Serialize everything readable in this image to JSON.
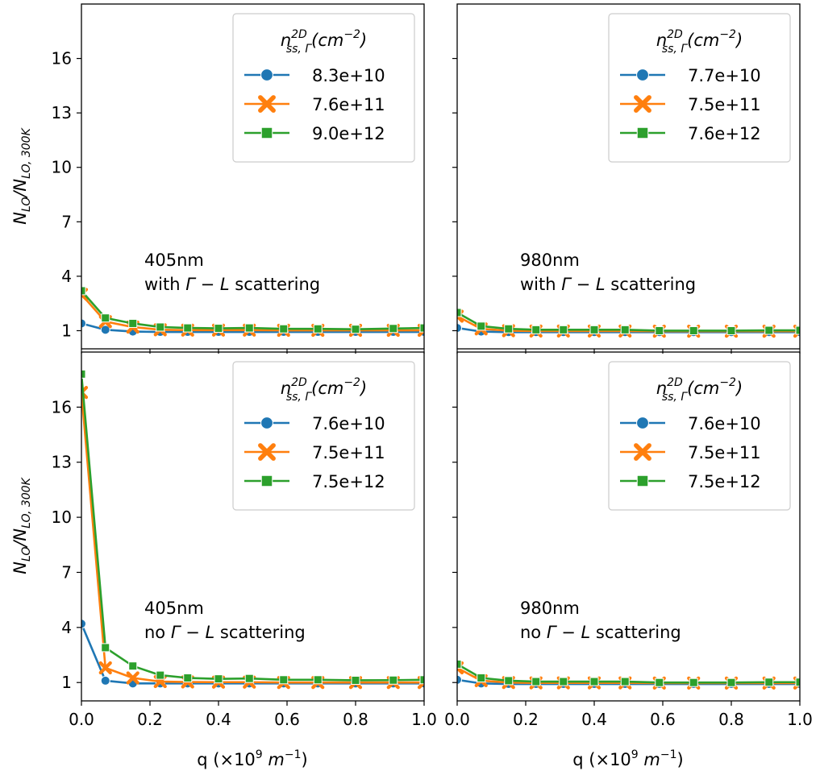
{
  "figure": {
    "ylabel_main": "N",
    "ylabel_sub1": "LO",
    "ylabel_mid": "/N",
    "ylabel_sub2": "LO, 300K",
    "xlabel_main": "q (×10",
    "xlabel_exp": "9",
    "xlabel_unit": "m",
    "xlabel_unit_exp": "−1",
    "xlabel_close": ")",
    "legend_title_main": "n",
    "legend_title_sup": "2D",
    "legend_title_sub": "ss, Γ",
    "legend_title_unit": "(cm",
    "legend_title_unit_exp": "−2",
    "legend_title_close": ")",
    "anno_scatter_prefix": "Γ − L",
    "anno_scatter_suffix": " scattering"
  },
  "chart_data": [
    {
      "type": "line",
      "annotation_line1": "405nm",
      "annotation_line2_prefix": "with ",
      "xlim": [
        0.0,
        1.0
      ],
      "ylim": [
        0,
        19
      ],
      "xticks": [
        "0.0",
        "0.2",
        "0.4",
        "0.6",
        "0.8",
        "1.0"
      ],
      "yticks": [
        1,
        4,
        7,
        10,
        13,
        16
      ],
      "legend_position": "top-right",
      "x": [
        0.0,
        0.07,
        0.15,
        0.23,
        0.31,
        0.4,
        0.49,
        0.59,
        0.69,
        0.8,
        0.91,
        1.0
      ],
      "series": [
        {
          "name": "8.3e+10",
          "color": "#1f77b4",
          "marker": "circle",
          "values": [
            1.4,
            1.05,
            0.95,
            0.93,
            0.93,
            0.93,
            0.93,
            0.93,
            0.93,
            0.93,
            0.93,
            0.93
          ]
        },
        {
          "name": "7.6e+11",
          "color": "#ff7f0e",
          "marker": "x",
          "values": [
            3.0,
            1.5,
            1.2,
            1.05,
            1.03,
            1.03,
            1.03,
            1.02,
            1.02,
            1.02,
            1.02,
            1.02
          ]
        },
        {
          "name": "9.0e+12",
          "color": "#2ca02c",
          "marker": "square",
          "values": [
            3.2,
            1.7,
            1.4,
            1.2,
            1.15,
            1.13,
            1.15,
            1.1,
            1.1,
            1.08,
            1.12,
            1.15
          ]
        }
      ]
    },
    {
      "type": "line",
      "annotation_line1": "980nm",
      "annotation_line2_prefix": "with ",
      "xlim": [
        0.0,
        1.0
      ],
      "ylim": [
        0,
        19
      ],
      "xticks": [
        "0.0",
        "0.2",
        "0.4",
        "0.6",
        "0.8",
        "1.0"
      ],
      "yticks": [
        1,
        4,
        7,
        10,
        13,
        16
      ],
      "legend_position": "top-right",
      "x": [
        0.0,
        0.07,
        0.15,
        0.23,
        0.31,
        0.4,
        0.49,
        0.59,
        0.69,
        0.8,
        0.91,
        1.0
      ],
      "series": [
        {
          "name": "7.7e+10",
          "color": "#1f77b4",
          "marker": "circle",
          "values": [
            1.15,
            0.95,
            0.92,
            0.92,
            0.92,
            0.92,
            0.92,
            0.92,
            0.92,
            0.92,
            0.92,
            0.92
          ]
        },
        {
          "name": "7.5e+11",
          "color": "#ff7f0e",
          "marker": "x",
          "values": [
            1.8,
            1.1,
            1.0,
            0.98,
            0.98,
            0.98,
            0.98,
            0.97,
            0.97,
            0.97,
            0.97,
            0.97
          ]
        },
        {
          "name": "7.6e+12",
          "color": "#2ca02c",
          "marker": "square",
          "values": [
            2.0,
            1.25,
            1.1,
            1.05,
            1.05,
            1.05,
            1.05,
            1.0,
            1.0,
            1.0,
            1.02,
            1.02
          ]
        }
      ]
    },
    {
      "type": "line",
      "annotation_line1": "405nm",
      "annotation_line2_prefix": "no ",
      "xlim": [
        0.0,
        1.0
      ],
      "ylim": [
        0,
        19
      ],
      "xticks": [
        "0.0",
        "0.2",
        "0.4",
        "0.6",
        "0.8",
        "1.0"
      ],
      "yticks": [
        1,
        4,
        7,
        10,
        13,
        16
      ],
      "legend_position": "top-right",
      "x": [
        0.0,
        0.07,
        0.15,
        0.23,
        0.31,
        0.4,
        0.49,
        0.59,
        0.69,
        0.8,
        0.91,
        1.0
      ],
      "series": [
        {
          "name": "7.6e+10",
          "color": "#1f77b4",
          "marker": "circle",
          "values": [
            4.2,
            1.1,
            0.95,
            0.95,
            0.95,
            0.95,
            0.95,
            0.95,
            0.95,
            0.95,
            0.95,
            0.95
          ]
        },
        {
          "name": "7.5e+11",
          "color": "#ff7f0e",
          "marker": "x",
          "values": [
            16.8,
            1.8,
            1.25,
            1.05,
            1.03,
            1.02,
            1.02,
            1.0,
            1.0,
            1.0,
            1.0,
            1.0
          ]
        },
        {
          "name": "7.5e+12",
          "color": "#2ca02c",
          "marker": "square",
          "values": [
            17.8,
            2.9,
            1.9,
            1.4,
            1.25,
            1.2,
            1.22,
            1.15,
            1.15,
            1.12,
            1.13,
            1.15
          ]
        }
      ]
    },
    {
      "type": "line",
      "annotation_line1": "980nm",
      "annotation_line2_prefix": "no ",
      "xlim": [
        0.0,
        1.0
      ],
      "ylim": [
        0,
        19
      ],
      "xticks": [
        "0.0",
        "0.2",
        "0.4",
        "0.6",
        "0.8",
        "1.0"
      ],
      "yticks": [
        1,
        4,
        7,
        10,
        13,
        16
      ],
      "legend_position": "top-right",
      "x": [
        0.0,
        0.07,
        0.15,
        0.23,
        0.31,
        0.4,
        0.49,
        0.59,
        0.69,
        0.8,
        0.91,
        1.0
      ],
      "series": [
        {
          "name": "7.6e+10",
          "color": "#1f77b4",
          "marker": "circle",
          "values": [
            1.15,
            0.95,
            0.92,
            0.92,
            0.92,
            0.92,
            0.92,
            0.92,
            0.92,
            0.92,
            0.92,
            0.92
          ]
        },
        {
          "name": "7.5e+11",
          "color": "#ff7f0e",
          "marker": "x",
          "values": [
            1.8,
            1.1,
            1.0,
            0.98,
            0.98,
            0.98,
            0.98,
            0.97,
            0.97,
            0.97,
            0.97,
            0.97
          ]
        },
        {
          "name": "7.5e+12",
          "color": "#2ca02c",
          "marker": "square",
          "values": [
            2.0,
            1.25,
            1.1,
            1.05,
            1.05,
            1.05,
            1.05,
            1.0,
            1.0,
            1.0,
            1.02,
            1.02
          ]
        }
      ]
    }
  ]
}
